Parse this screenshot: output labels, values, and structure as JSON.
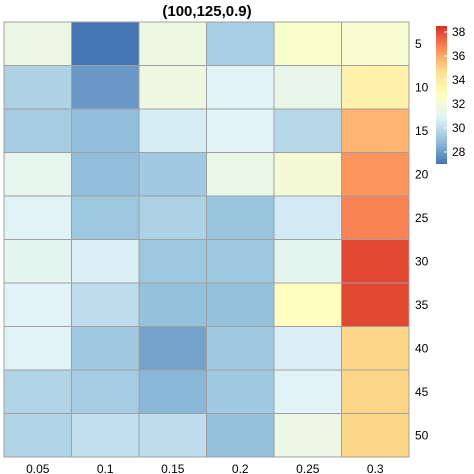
{
  "chart_data": {
    "type": "heatmap",
    "title": "(100,125,0.9)",
    "x_categories": [
      "0.05",
      "0.1",
      "0.15",
      "0.2",
      "0.25",
      "0.3"
    ],
    "y_categories": [
      "5",
      "10",
      "15",
      "20",
      "25",
      "30",
      "35",
      "40",
      "45",
      "50"
    ],
    "values": [
      [
        31.5,
        27.0,
        31.6,
        29.5,
        32.4,
        32.2
      ],
      [
        29.6,
        27.9,
        31.6,
        30.9,
        31.3,
        33.6
      ],
      [
        29.4,
        28.9,
        30.6,
        30.9,
        29.8,
        35.7
      ],
      [
        31.2,
        28.9,
        29.3,
        31.4,
        32.0,
        36.4
      ],
      [
        30.9,
        29.2,
        29.6,
        29.1,
        30.5,
        36.8
      ],
      [
        31.1,
        30.7,
        29.2,
        29.2,
        31.1,
        38.0
      ],
      [
        30.9,
        30.0,
        29.0,
        29.0,
        32.8,
        38.0
      ],
      [
        30.9,
        29.3,
        28.2,
        29.3,
        30.7,
        34.9
      ],
      [
        29.7,
        29.4,
        28.7,
        29.3,
        30.9,
        34.9
      ],
      [
        29.7,
        30.1,
        30.0,
        29.0,
        31.5,
        34.9
      ]
    ],
    "colorbar": {
      "min": 27.0,
      "max": 38.5,
      "ticks": [
        28,
        30,
        32,
        34,
        36,
        38
      ]
    },
    "colorscale": [
      "#4575b4",
      "#91bfdb",
      "#e0f3f8",
      "#ffffbf",
      "#fee090",
      "#fc8d59",
      "#d73027"
    ],
    "cell_border_color": "#a0a0a0"
  }
}
